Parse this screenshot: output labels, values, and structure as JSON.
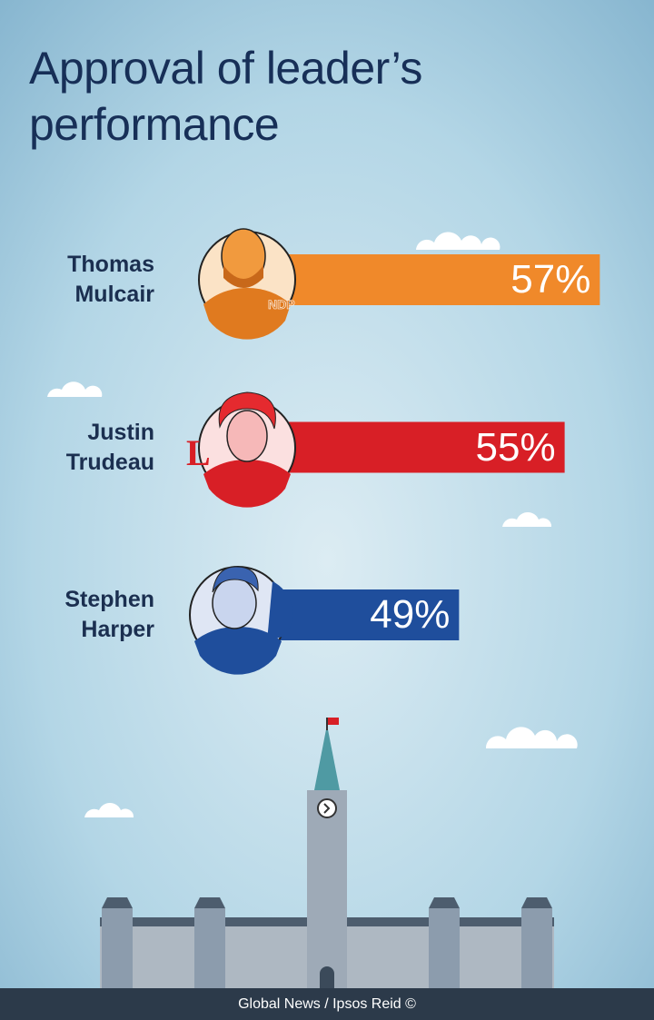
{
  "chart_data": {
    "type": "bar",
    "orientation": "horizontal",
    "title": "Approval of leader’s performance",
    "categories": [
      "Thomas Mulcair",
      "Justin Trudeau",
      "Stephen Harper"
    ],
    "values": [
      57,
      55,
      49
    ],
    "value_labels": [
      "57%",
      "55%",
      "49%"
    ],
    "colors": [
      "#f0892a",
      "#d81f26",
      "#1f4e9c"
    ],
    "source": "Global News / Ipsos Reid ©"
  }
}
